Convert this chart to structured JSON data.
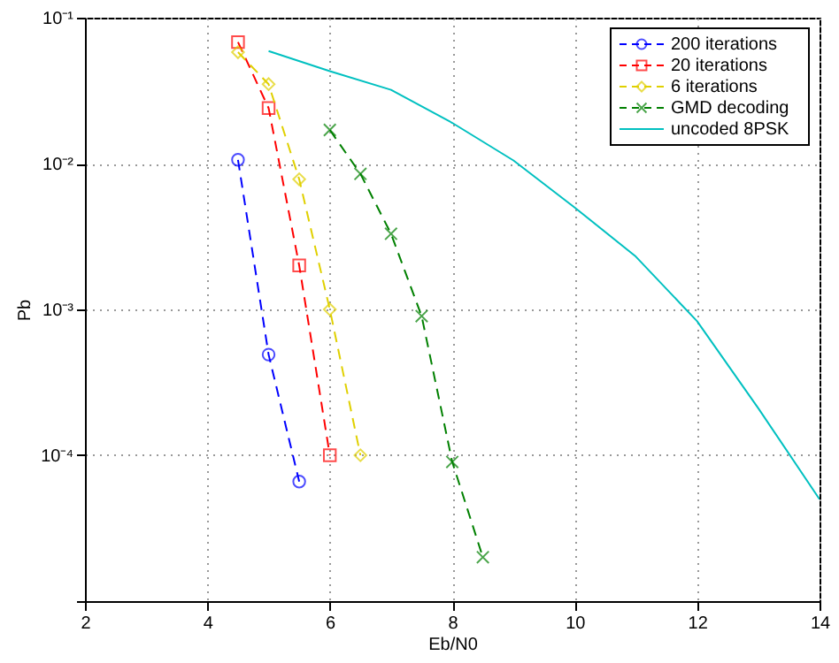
{
  "chart_data": {
    "type": "line",
    "xlabel": "Eb/N0",
    "ylabel": "Pb",
    "log": "y",
    "grid": true,
    "legend": "top right",
    "xlim": [
      2,
      14
    ],
    "xticks": [
      2,
      4,
      6,
      8,
      10,
      12,
      14
    ],
    "ylim": [
      1e-05,
      0.1
    ],
    "yticks": [
      {
        "value": 0.1,
        "label": "10⁻¹"
      },
      {
        "value": 0.01,
        "label": "10⁻²"
      },
      {
        "value": 0.001,
        "label": "10⁻³"
      },
      {
        "value": 0.0001,
        "label": "10⁻⁴"
      },
      {
        "value": 1e-05,
        "label": null
      }
    ],
    "series": [
      {
        "name": "200 iterations",
        "color": "#0000ff",
        "marker": "circle",
        "line_style": "dashed",
        "x": [
          4.5,
          5,
          5.5
        ],
        "values": [
          0.0106,
          0.00049,
          6.6e-05
        ]
      },
      {
        "name": "20 iterations",
        "color": "#ff0000",
        "marker": "square",
        "line_style": "dashed",
        "x": [
          4.5,
          5,
          5.5,
          6
        ],
        "values": [
          0.068,
          0.024,
          0.002,
          0.0001
        ]
      },
      {
        "name": "6 iterations",
        "color": "#e0d000",
        "marker": "diamond",
        "line_style": "dashed",
        "x": [
          4.5,
          5,
          5.5,
          6,
          6.5
        ],
        "values": [
          0.058,
          0.035,
          0.0078,
          0.001,
          0.0001
        ]
      },
      {
        "name": "GMD decoding",
        "color": "#008000",
        "marker": "cross",
        "line_style": "dashed",
        "x": [
          6,
          6.5,
          7,
          7.5,
          8,
          8.5
        ],
        "values": [
          0.017,
          0.0085,
          0.0033,
          0.0009,
          9e-05,
          2e-05
        ]
      },
      {
        "name": "uncoded 8PSK",
        "color": "#00c0c0",
        "marker": "none",
        "line_style": "solid",
        "x": [
          5,
          6,
          7,
          8,
          9,
          10,
          11,
          12,
          13,
          14
        ],
        "values": [
          0.059,
          0.043,
          0.032,
          0.019,
          0.0105,
          0.005,
          0.0023,
          0.00083,
          0.00021,
          5e-05
        ]
      }
    ]
  }
}
